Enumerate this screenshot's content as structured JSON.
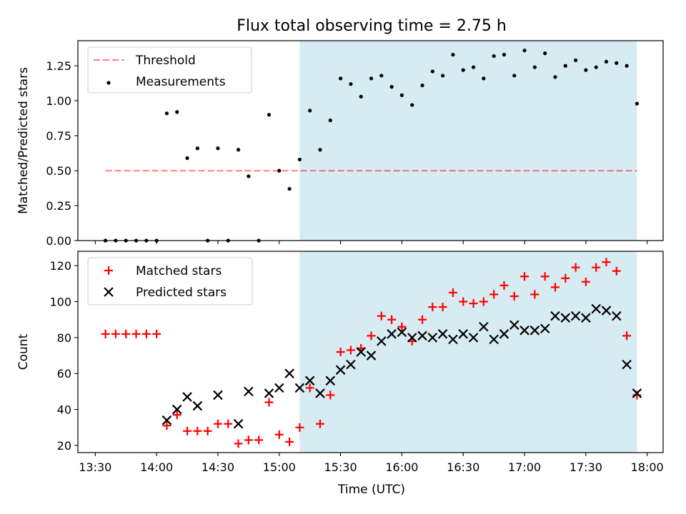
{
  "title": "Flux total observing time = 2.75 h",
  "chart_data": [
    {
      "type": "scatter",
      "xlabel": "",
      "ylabel": "Matched/Predicted stars",
      "ylim": [
        0,
        1.43
      ],
      "yticks": [
        0.0,
        0.25,
        0.5,
        0.75,
        1.0,
        1.25
      ],
      "ytick_labels": [
        "0.00",
        "0.25",
        "0.50",
        "0.75",
        "1.00",
        "1.25"
      ],
      "xlim": [
        "13:30",
        "18:00"
      ],
      "legend_position": "upper-left",
      "shaded_region": {
        "x_start": "15:10",
        "x_end": "17:55",
        "color": "#add8e6"
      },
      "threshold": {
        "name": "Threshold",
        "value": 0.5,
        "x_start": "13:35",
        "x_end": "17:55",
        "color": "#ff0000"
      },
      "series": [
        {
          "name": "Measurements",
          "marker": "dot",
          "color": "#000000",
          "points": [
            [
              "13:35",
              0.0
            ],
            [
              "13:40",
              0.0
            ],
            [
              "13:45",
              0.0
            ],
            [
              "13:50",
              0.0
            ],
            [
              "13:55",
              0.0
            ],
            [
              "14:00",
              0.0
            ],
            [
              "14:05",
              0.91
            ],
            [
              "14:10",
              0.92
            ],
            [
              "14:15",
              0.59
            ],
            [
              "14:20",
              0.66
            ],
            [
              "14:25",
              0.0
            ],
            [
              "14:30",
              0.66
            ],
            [
              "14:35",
              0.0
            ],
            [
              "14:40",
              0.65
            ],
            [
              "14:45",
              0.46
            ],
            [
              "14:50",
              0.0
            ],
            [
              "14:55",
              0.9
            ],
            [
              "15:00",
              0.5
            ],
            [
              "15:05",
              0.37
            ],
            [
              "15:10",
              0.58
            ],
            [
              "15:15",
              0.93
            ],
            [
              "15:20",
              0.65
            ],
            [
              "15:25",
              0.86
            ],
            [
              "15:30",
              1.16
            ],
            [
              "15:35",
              1.12
            ],
            [
              "15:40",
              1.03
            ],
            [
              "15:45",
              1.16
            ],
            [
              "15:50",
              1.18
            ],
            [
              "15:55",
              1.1
            ],
            [
              "16:00",
              1.04
            ],
            [
              "16:05",
              0.97
            ],
            [
              "16:10",
              1.11
            ],
            [
              "16:15",
              1.21
            ],
            [
              "16:20",
              1.18
            ],
            [
              "16:25",
              1.33
            ],
            [
              "16:30",
              1.22
            ],
            [
              "16:35",
              1.24
            ],
            [
              "16:40",
              1.16
            ],
            [
              "16:45",
              1.32
            ],
            [
              "16:50",
              1.33
            ],
            [
              "16:55",
              1.18
            ],
            [
              "17:00",
              1.36
            ],
            [
              "17:05",
              1.24
            ],
            [
              "17:10",
              1.34
            ],
            [
              "17:15",
              1.17
            ],
            [
              "17:20",
              1.25
            ],
            [
              "17:25",
              1.29
            ],
            [
              "17:30",
              1.22
            ],
            [
              "17:35",
              1.24
            ],
            [
              "17:40",
              1.28
            ],
            [
              "17:45",
              1.27
            ],
            [
              "17:50",
              1.25
            ],
            [
              "17:55",
              0.98
            ]
          ]
        }
      ]
    },
    {
      "type": "scatter",
      "xlabel": "Time (UTC)",
      "ylabel": "Count",
      "ylim": [
        16,
        128
      ],
      "yticks": [
        20,
        40,
        60,
        80,
        100,
        120
      ],
      "ytick_labels": [
        "20",
        "40",
        "60",
        "80",
        "100",
        "120"
      ],
      "xlim": [
        "13:30",
        "18:00"
      ],
      "xticks": [
        "13:30",
        "14:00",
        "14:30",
        "15:00",
        "15:30",
        "16:00",
        "16:30",
        "17:00",
        "17:30",
        "18:00"
      ],
      "xtick_labels": [
        "13:30",
        "14:00",
        "14:30",
        "15:00",
        "15:30",
        "16:00",
        "16:30",
        "17:00",
        "17:30",
        "18:00"
      ],
      "legend_position": "upper-left",
      "shaded_region": {
        "x_start": "15:10",
        "x_end": "17:55",
        "color": "#add8e6"
      },
      "series": [
        {
          "name": "Matched stars",
          "marker": "plus",
          "color": "#ff0000",
          "points": [
            [
              "13:35",
              82
            ],
            [
              "13:40",
              82
            ],
            [
              "13:45",
              82
            ],
            [
              "13:50",
              82
            ],
            [
              "13:55",
              82
            ],
            [
              "14:00",
              82
            ],
            [
              "14:05",
              31
            ],
            [
              "14:10",
              37
            ],
            [
              "14:15",
              28
            ],
            [
              "14:20",
              28
            ],
            [
              "14:25",
              28
            ],
            [
              "14:30",
              32
            ],
            [
              "14:35",
              32
            ],
            [
              "14:40",
              21
            ],
            [
              "14:45",
              23
            ],
            [
              "14:50",
              23
            ],
            [
              "14:55",
              44
            ],
            [
              "15:00",
              26
            ],
            [
              "15:05",
              22
            ],
            [
              "15:10",
              30
            ],
            [
              "15:15",
              52
            ],
            [
              "15:20",
              32
            ],
            [
              "15:25",
              48
            ],
            [
              "15:30",
              72
            ],
            [
              "15:35",
              73
            ],
            [
              "15:40",
              74
            ],
            [
              "15:45",
              81
            ],
            [
              "15:50",
              92
            ],
            [
              "15:55",
              90
            ],
            [
              "16:00",
              86
            ],
            [
              "16:05",
              78
            ],
            [
              "16:10",
              90
            ],
            [
              "16:15",
              97
            ],
            [
              "16:20",
              97
            ],
            [
              "16:25",
              105
            ],
            [
              "16:30",
              100
            ],
            [
              "16:35",
              99
            ],
            [
              "16:40",
              100
            ],
            [
              "16:45",
              104
            ],
            [
              "16:50",
              109
            ],
            [
              "16:55",
              103
            ],
            [
              "17:00",
              114
            ],
            [
              "17:05",
              104
            ],
            [
              "17:10",
              114
            ],
            [
              "17:15",
              108
            ],
            [
              "17:20",
              113
            ],
            [
              "17:25",
              119
            ],
            [
              "17:30",
              111
            ],
            [
              "17:35",
              119
            ],
            [
              "17:40",
              122
            ],
            [
              "17:45",
              117
            ],
            [
              "17:50",
              81
            ],
            [
              "17:55",
              48
            ]
          ]
        },
        {
          "name": "Predicted stars",
          "marker": "x",
          "color": "#000000",
          "points": [
            [
              "14:05",
              34
            ],
            [
              "14:10",
              40
            ],
            [
              "14:15",
              47
            ],
            [
              "14:20",
              42
            ],
            [
              "14:30",
              48
            ],
            [
              "14:40",
              32
            ],
            [
              "14:45",
              50
            ],
            [
              "14:55",
              49
            ],
            [
              "15:00",
              52
            ],
            [
              "15:05",
              60
            ],
            [
              "15:10",
              52
            ],
            [
              "15:15",
              56
            ],
            [
              "15:20",
              49
            ],
            [
              "15:25",
              56
            ],
            [
              "15:30",
              62
            ],
            [
              "15:35",
              65
            ],
            [
              "15:40",
              72
            ],
            [
              "15:45",
              70
            ],
            [
              "15:50",
              78
            ],
            [
              "15:55",
              82
            ],
            [
              "16:00",
              83
            ],
            [
              "16:05",
              80
            ],
            [
              "16:10",
              81
            ],
            [
              "16:15",
              80
            ],
            [
              "16:20",
              82
            ],
            [
              "16:25",
              79
            ],
            [
              "16:30",
              82
            ],
            [
              "16:35",
              80
            ],
            [
              "16:40",
              86
            ],
            [
              "16:45",
              79
            ],
            [
              "16:50",
              82
            ],
            [
              "16:55",
              87
            ],
            [
              "17:00",
              84
            ],
            [
              "17:05",
              84
            ],
            [
              "17:10",
              85
            ],
            [
              "17:15",
              92
            ],
            [
              "17:20",
              91
            ],
            [
              "17:25",
              92
            ],
            [
              "17:30",
              91
            ],
            [
              "17:35",
              96
            ],
            [
              "17:40",
              95
            ],
            [
              "17:45",
              92
            ],
            [
              "17:50",
              65
            ],
            [
              "17:55",
              49
            ]
          ]
        }
      ]
    }
  ]
}
